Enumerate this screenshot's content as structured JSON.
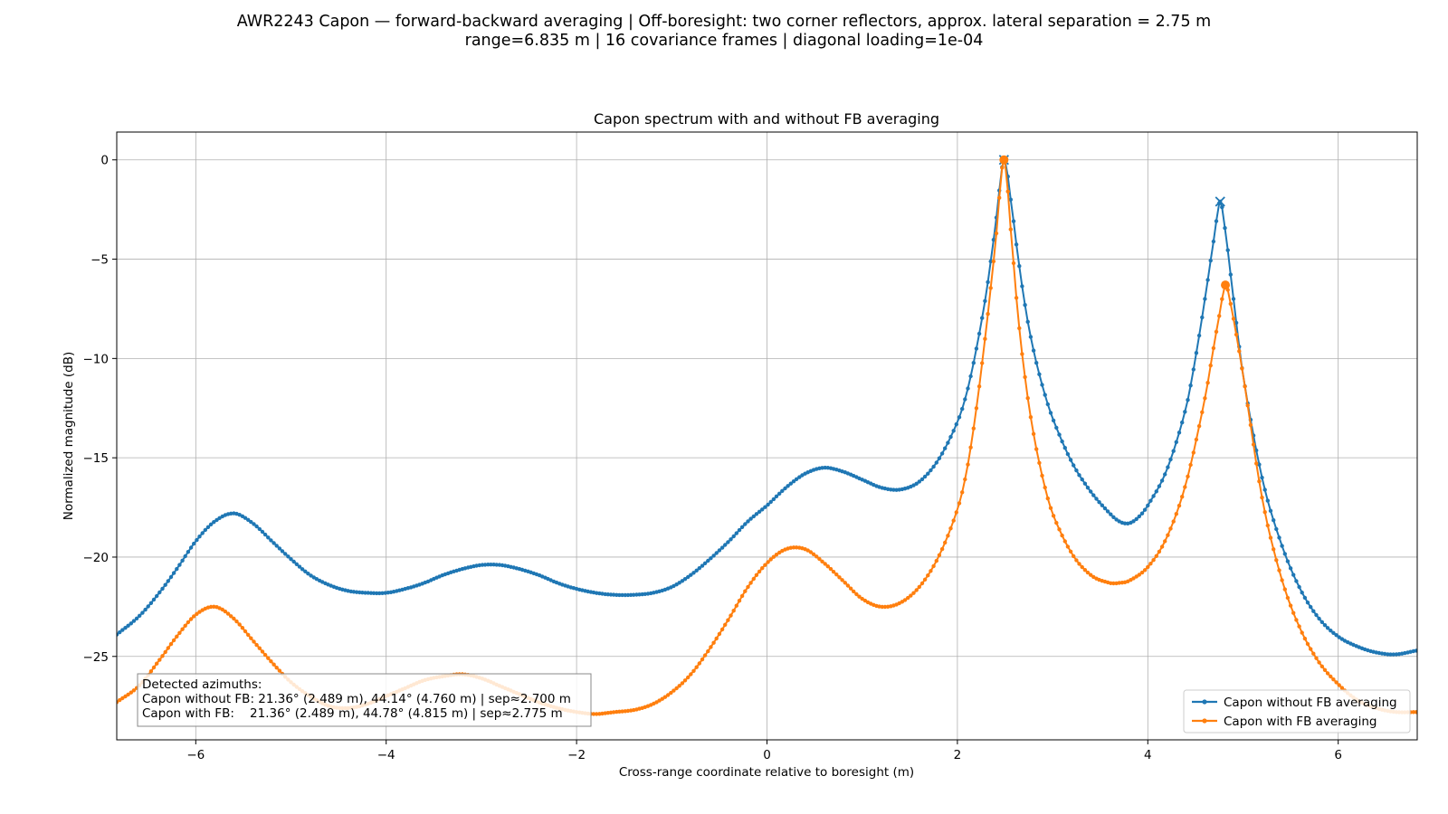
{
  "figure": {
    "suptitle_line1": "AWR2243 Capon — forward-backward averaging | Off-boresight: two corner reflectors, approx. lateral separation = 2.75 m",
    "suptitle_line2": "range=6.835 m | 16 covariance frames | diagonal loading=1e-04"
  },
  "chart_data": {
    "type": "line",
    "title": "Capon spectrum with and without FB averaging",
    "xlabel": "Cross-range coordinate relative to boresight (m)",
    "ylabel": "Normalized magnitude (dB)",
    "xlim": [
      -6.83,
      6.83
    ],
    "ylim": [
      -29.2,
      1.4
    ],
    "xticks": [
      -6,
      -4,
      -2,
      0,
      2,
      4,
      6
    ],
    "yticks": [
      0,
      -5,
      -10,
      -15,
      -20,
      -25
    ],
    "grid": true,
    "legend_position": "lower-right",
    "annotation": {
      "line1": "Detected azimuths:",
      "line2": "Capon without FB: 21.36° (2.489 m), 44.14° (4.760 m) | sep≈2.700 m",
      "line3": "Capon with FB:    21.36° (2.489 m), 44.78° (4.815 m) | sep≈2.775 m",
      "position": "lower-left"
    },
    "series": [
      {
        "name": "Capon without FB averaging",
        "color": "#1f77b4",
        "peak_marker": "x",
        "peaks": [
          [
            2.489,
            0.0
          ],
          [
            4.76,
            -2.1
          ]
        ],
        "points": [
          [
            -6.83,
            -23.9
          ],
          [
            -6.6,
            -23.0
          ],
          [
            -6.4,
            -21.9
          ],
          [
            -6.2,
            -20.6
          ],
          [
            -6.0,
            -19.2
          ],
          [
            -5.8,
            -18.2
          ],
          [
            -5.6,
            -17.8
          ],
          [
            -5.4,
            -18.3
          ],
          [
            -5.2,
            -19.2
          ],
          [
            -5.0,
            -20.1
          ],
          [
            -4.8,
            -20.9
          ],
          [
            -4.6,
            -21.4
          ],
          [
            -4.4,
            -21.7
          ],
          [
            -4.2,
            -21.8
          ],
          [
            -4.0,
            -21.8
          ],
          [
            -3.8,
            -21.6
          ],
          [
            -3.6,
            -21.3
          ],
          [
            -3.4,
            -20.9
          ],
          [
            -3.2,
            -20.6
          ],
          [
            -3.0,
            -20.4
          ],
          [
            -2.8,
            -20.4
          ],
          [
            -2.6,
            -20.6
          ],
          [
            -2.4,
            -20.9
          ],
          [
            -2.2,
            -21.3
          ],
          [
            -2.0,
            -21.6
          ],
          [
            -1.8,
            -21.8
          ],
          [
            -1.6,
            -21.9
          ],
          [
            -1.4,
            -21.9
          ],
          [
            -1.2,
            -21.8
          ],
          [
            -1.0,
            -21.5
          ],
          [
            -0.8,
            -20.9
          ],
          [
            -0.6,
            -20.1
          ],
          [
            -0.4,
            -19.2
          ],
          [
            -0.2,
            -18.2
          ],
          [
            0.0,
            -17.4
          ],
          [
            0.2,
            -16.5
          ],
          [
            0.4,
            -15.8
          ],
          [
            0.6,
            -15.5
          ],
          [
            0.8,
            -15.7
          ],
          [
            1.0,
            -16.1
          ],
          [
            1.2,
            -16.5
          ],
          [
            1.4,
            -16.6
          ],
          [
            1.6,
            -16.2
          ],
          [
            1.8,
            -15.1
          ],
          [
            2.0,
            -13.2
          ],
          [
            2.1,
            -11.7
          ],
          [
            2.2,
            -9.5
          ],
          [
            2.3,
            -6.8
          ],
          [
            2.4,
            -3.3
          ],
          [
            2.489,
            0.0
          ],
          [
            2.56,
            -2.0
          ],
          [
            2.64,
            -5.0
          ],
          [
            2.72,
            -7.6
          ],
          [
            2.8,
            -9.6
          ],
          [
            2.9,
            -11.5
          ],
          [
            3.0,
            -13.0
          ],
          [
            3.2,
            -15.2
          ],
          [
            3.4,
            -16.7
          ],
          [
            3.6,
            -17.8
          ],
          [
            3.7,
            -18.2
          ],
          [
            3.8,
            -18.3
          ],
          [
            3.9,
            -18.0
          ],
          [
            4.0,
            -17.4
          ],
          [
            4.2,
            -15.6
          ],
          [
            4.4,
            -12.5
          ],
          [
            4.5,
            -10.0
          ],
          [
            4.6,
            -7.0
          ],
          [
            4.7,
            -3.8
          ],
          [
            4.76,
            -2.1
          ],
          [
            4.82,
            -3.8
          ],
          [
            4.9,
            -7.0
          ],
          [
            5.0,
            -10.8
          ],
          [
            5.2,
            -16.0
          ],
          [
            5.4,
            -19.3
          ],
          [
            5.6,
            -21.6
          ],
          [
            5.8,
            -23.1
          ],
          [
            6.0,
            -24.0
          ],
          [
            6.2,
            -24.5
          ],
          [
            6.4,
            -24.8
          ],
          [
            6.6,
            -24.9
          ],
          [
            6.83,
            -24.7
          ]
        ]
      },
      {
        "name": "Capon with FB averaging",
        "color": "#ff7f0e",
        "peak_marker": "o",
        "peaks": [
          [
            2.489,
            0.0
          ],
          [
            4.815,
            -6.3
          ]
        ],
        "points": [
          [
            -6.83,
            -27.3
          ],
          [
            -6.6,
            -26.5
          ],
          [
            -6.4,
            -25.3
          ],
          [
            -6.2,
            -24.0
          ],
          [
            -6.0,
            -22.9
          ],
          [
            -5.8,
            -22.5
          ],
          [
            -5.6,
            -23.1
          ],
          [
            -5.4,
            -24.2
          ],
          [
            -5.2,
            -25.3
          ],
          [
            -5.0,
            -26.3
          ],
          [
            -4.8,
            -27.0
          ],
          [
            -4.6,
            -27.5
          ],
          [
            -4.4,
            -27.6
          ],
          [
            -4.2,
            -27.4
          ],
          [
            -4.0,
            -27.0
          ],
          [
            -3.8,
            -26.6
          ],
          [
            -3.6,
            -26.2
          ],
          [
            -3.4,
            -26.0
          ],
          [
            -3.2,
            -25.9
          ],
          [
            -3.0,
            -26.1
          ],
          [
            -2.8,
            -26.5
          ],
          [
            -2.6,
            -26.9
          ],
          [
            -2.4,
            -27.3
          ],
          [
            -2.2,
            -27.6
          ],
          [
            -2.0,
            -27.8
          ],
          [
            -1.8,
            -27.9
          ],
          [
            -1.6,
            -27.8
          ],
          [
            -1.4,
            -27.7
          ],
          [
            -1.2,
            -27.4
          ],
          [
            -1.0,
            -26.8
          ],
          [
            -0.8,
            -25.9
          ],
          [
            -0.6,
            -24.6
          ],
          [
            -0.4,
            -23.1
          ],
          [
            -0.2,
            -21.5
          ],
          [
            0.0,
            -20.3
          ],
          [
            0.2,
            -19.6
          ],
          [
            0.4,
            -19.6
          ],
          [
            0.6,
            -20.3
          ],
          [
            0.8,
            -21.2
          ],
          [
            1.0,
            -22.1
          ],
          [
            1.2,
            -22.5
          ],
          [
            1.4,
            -22.3
          ],
          [
            1.6,
            -21.5
          ],
          [
            1.8,
            -20.0
          ],
          [
            2.0,
            -17.6
          ],
          [
            2.1,
            -15.6
          ],
          [
            2.2,
            -12.5
          ],
          [
            2.3,
            -8.6
          ],
          [
            2.4,
            -4.2
          ],
          [
            2.489,
            0.0
          ],
          [
            2.56,
            -3.5
          ],
          [
            2.64,
            -8.0
          ],
          [
            2.72,
            -11.3
          ],
          [
            2.8,
            -13.8
          ],
          [
            2.9,
            -16.1
          ],
          [
            3.0,
            -17.8
          ],
          [
            3.2,
            -19.8
          ],
          [
            3.4,
            -20.9
          ],
          [
            3.6,
            -21.3
          ],
          [
            3.7,
            -21.3
          ],
          [
            3.8,
            -21.2
          ],
          [
            4.0,
            -20.5
          ],
          [
            4.2,
            -19.0
          ],
          [
            4.4,
            -16.3
          ],
          [
            4.6,
            -12.0
          ],
          [
            4.7,
            -9.2
          ],
          [
            4.76,
            -7.6
          ],
          [
            4.815,
            -6.3
          ],
          [
            4.88,
            -7.5
          ],
          [
            5.0,
            -10.8
          ],
          [
            5.2,
            -17.0
          ],
          [
            5.4,
            -21.0
          ],
          [
            5.6,
            -23.6
          ],
          [
            5.8,
            -25.3
          ],
          [
            6.0,
            -26.4
          ],
          [
            6.2,
            -27.2
          ],
          [
            6.4,
            -27.6
          ],
          [
            6.6,
            -27.8
          ],
          [
            6.83,
            -27.8
          ]
        ]
      }
    ]
  }
}
